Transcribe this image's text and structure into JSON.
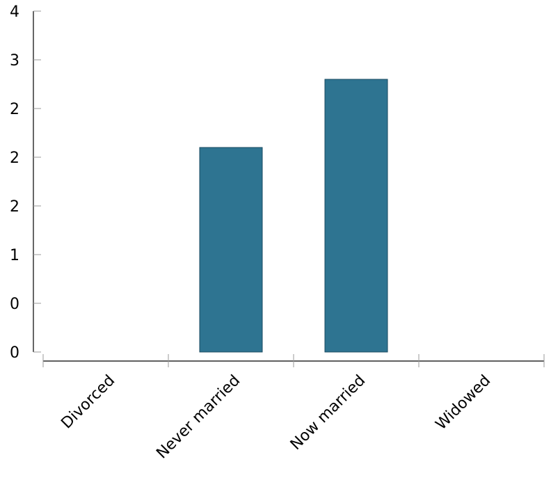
{
  "chart_data": {
    "type": "bar",
    "categories": [
      "Divorced",
      "Never married",
      "Now married",
      "Widowed"
    ],
    "values": [
      0,
      2.1,
      2.8,
      0
    ],
    "ylim": [
      0,
      3.5
    ],
    "y_ticks": [
      0,
      0.5,
      1,
      1.5,
      2,
      2.5,
      3,
      3.5
    ],
    "y_tick_labels": [
      "0",
      "0",
      "1",
      "2",
      "2",
      "2",
      "3",
      "4"
    ],
    "title": "",
    "xlabel": "",
    "ylabel": "",
    "grid": false,
    "bar_color": "#2e7491"
  }
}
